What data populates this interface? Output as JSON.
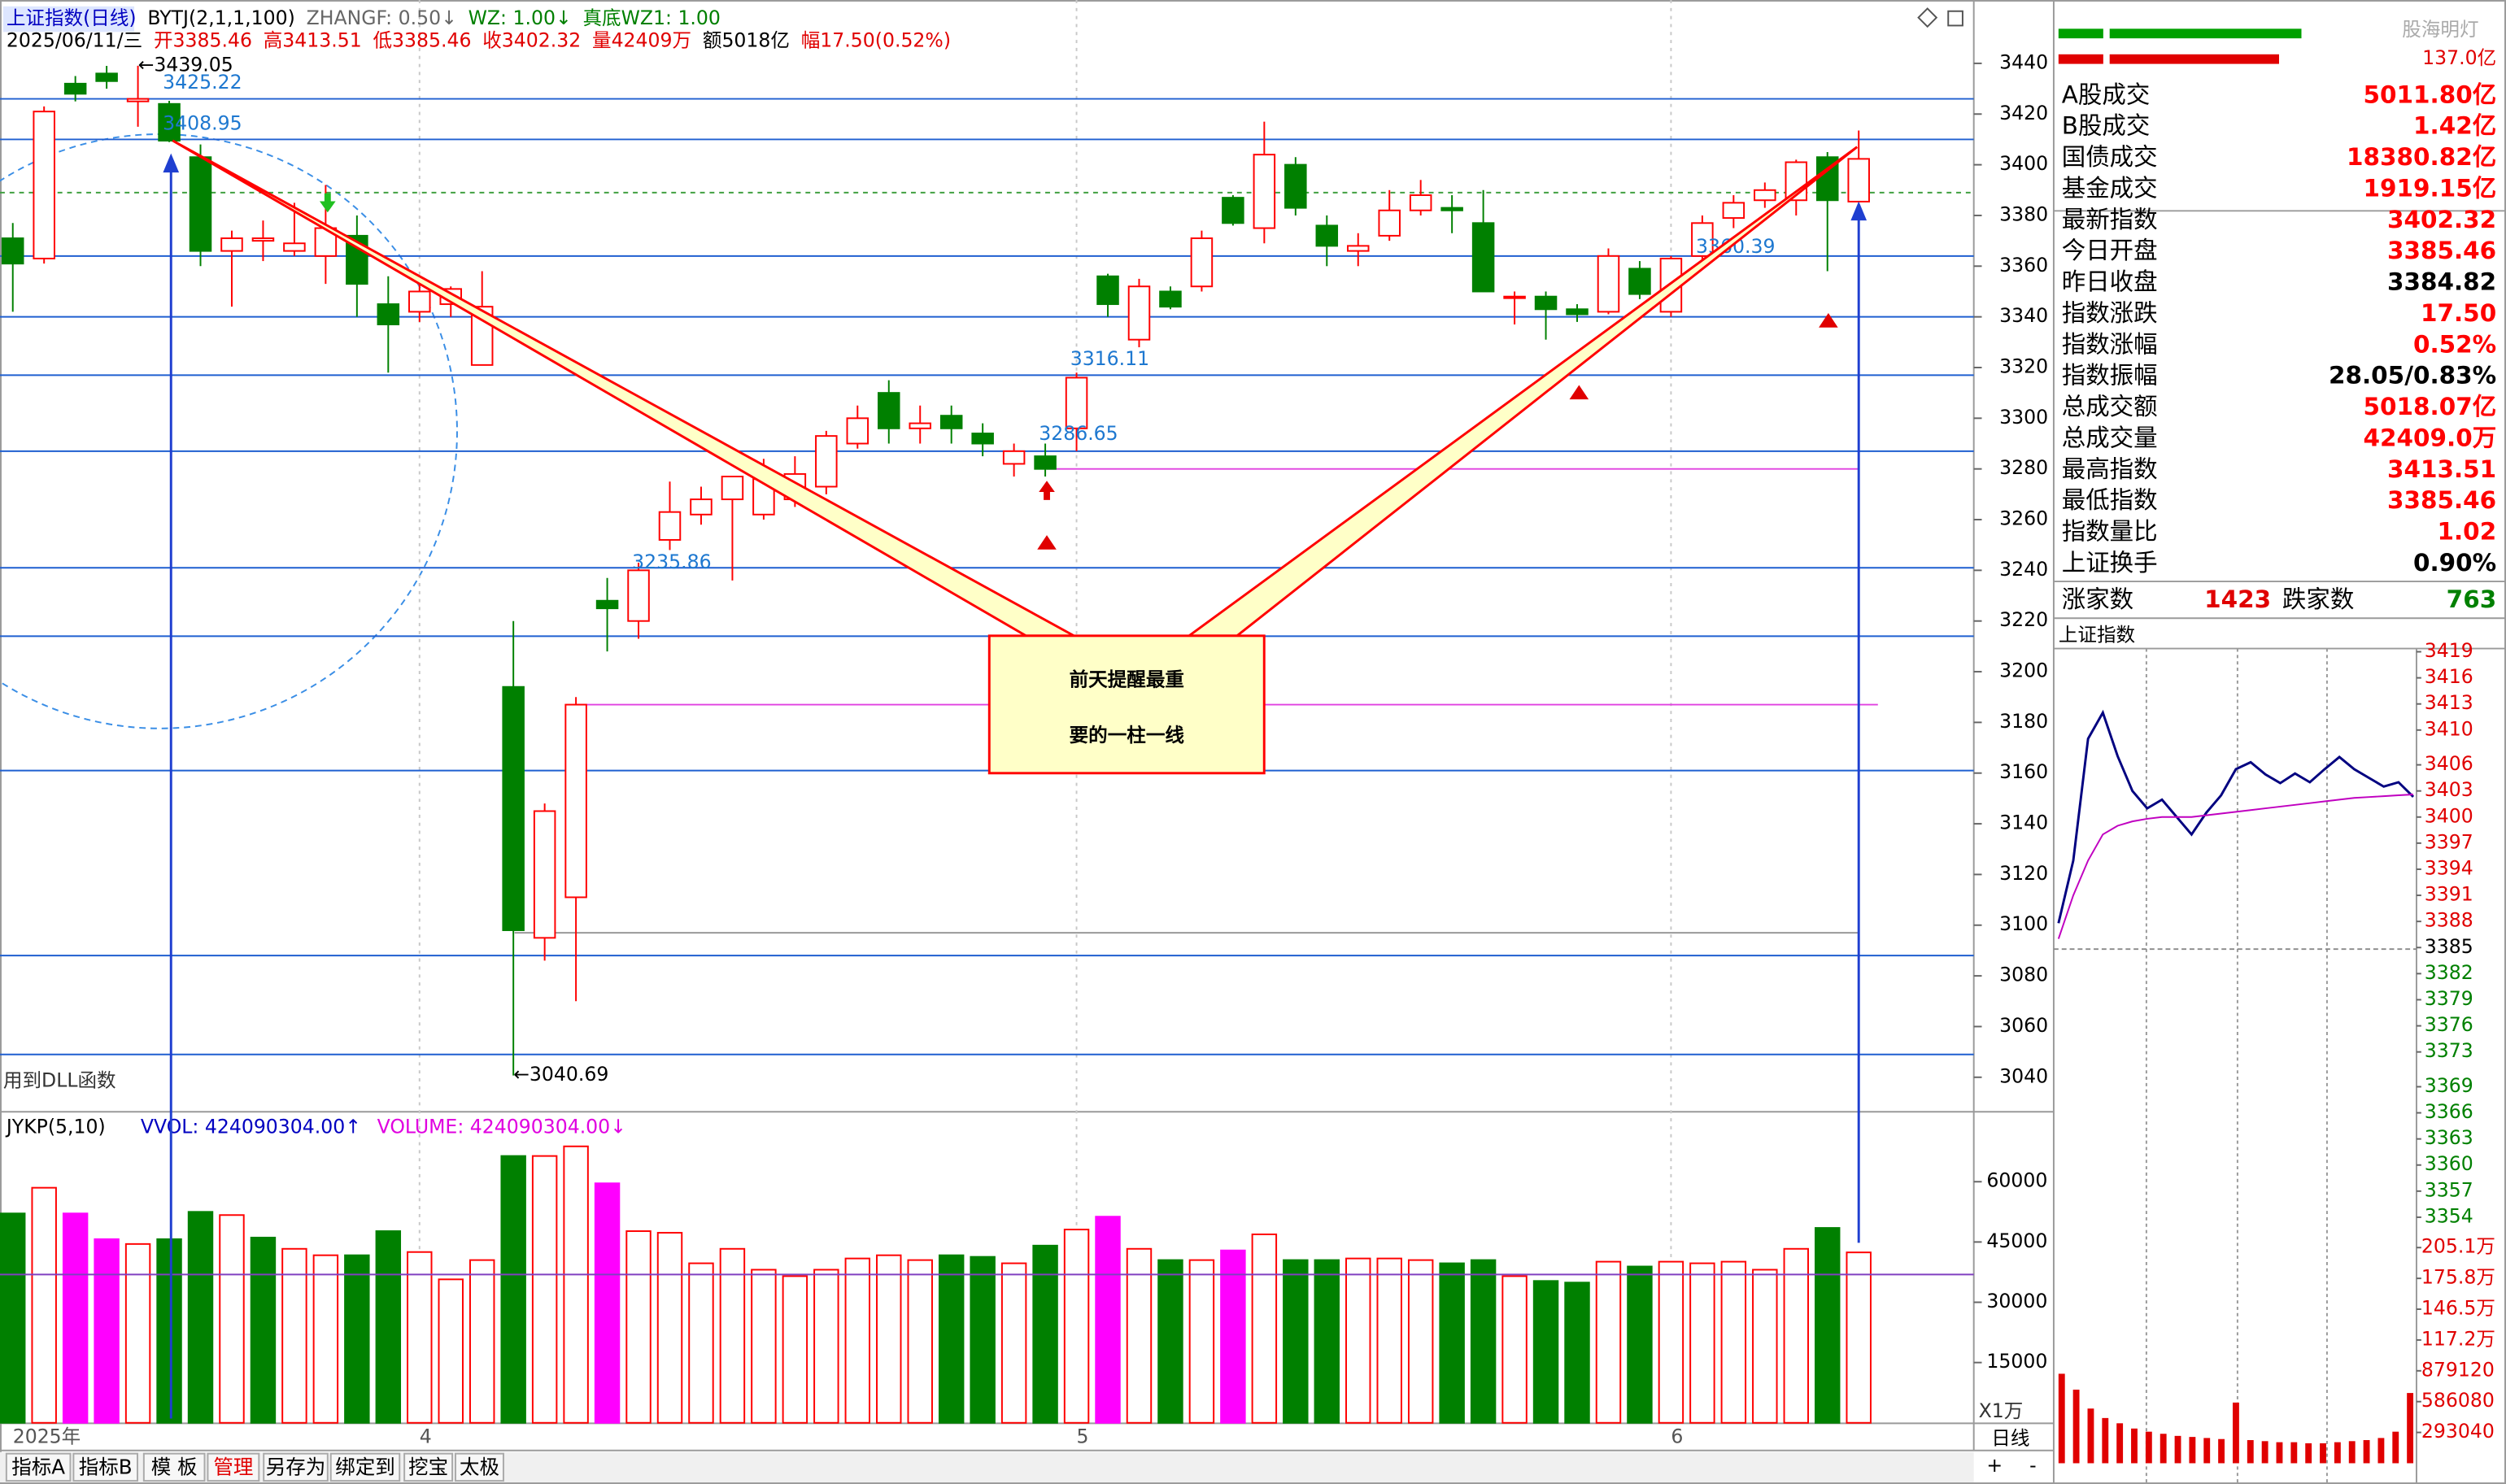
{
  "header": {
    "title": "上证指数(日线)",
    "indicator": "BYTJ(2,1,1,100)",
    "params": [
      "ZHANGF: 0.50↓",
      "WZ: 1.00↓",
      "真底WZ1: 1.00"
    ],
    "quote": [
      "2025/06/11/三",
      "开3385.46",
      "高3413.51",
      "低3385.46",
      "收3402.32",
      "量42409万",
      "额5018亿",
      "幅17.50(0.52%)"
    ]
  },
  "note": "用到DLL函数",
  "callout": [
    "前天提醒最重",
    "要的一柱一线"
  ],
  "chart_data": [
    {
      "type": "candlestick",
      "title": "上证指数(日线)",
      "categories": [
        "2025年",
        null,
        null,
        null,
        null,
        null,
        null,
        null,
        null,
        null,
        null,
        null,
        null,
        "4",
        null,
        null,
        null,
        null,
        null,
        null,
        null,
        null,
        null,
        null,
        null,
        null,
        null,
        null,
        null,
        null,
        null,
        null,
        null,
        null,
        "5",
        null,
        null,
        null,
        null,
        null,
        null,
        null,
        null,
        null,
        null,
        null,
        null,
        null,
        null,
        null,
        null,
        null,
        null,
        "6",
        null,
        null,
        null,
        null,
        null,
        null
      ],
      "open": [
        3371,
        3363,
        3432,
        3436,
        3425,
        3424,
        3403,
        3366,
        3370,
        3366,
        3364,
        3372,
        3345,
        3342,
        3345,
        3321,
        3194,
        3095,
        3111,
        3228,
        3220,
        3252,
        3262,
        3268,
        3262,
        3268,
        3273,
        3290,
        3310,
        3296,
        3301,
        3294,
        3282,
        3285,
        3296,
        3356,
        3331,
        3350,
        3352,
        3387,
        3375,
        3400,
        3376,
        3366,
        3372,
        3382,
        3383,
        3377,
        3348,
        3348,
        3343,
        3342,
        3359,
        3342,
        3364,
        3379,
        3386,
        3386,
        3403,
        3385.46
      ],
      "high": [
        3377,
        3423,
        3435,
        3439,
        3439.05,
        3425.22,
        3408,
        3374,
        3378,
        3385,
        3392,
        3380,
        3356,
        3356,
        3352,
        3358,
        3220,
        3148,
        3190,
        3237,
        3243,
        3275,
        3273,
        3277,
        3284,
        3285,
        3295,
        3305,
        3315,
        3305,
        3305,
        3298,
        3290,
        3290,
        3318,
        3357,
        3355,
        3352,
        3374,
        3388,
        3417,
        3403,
        3380,
        3373,
        3390,
        3394,
        3388,
        3390,
        3350,
        3350,
        3345,
        3367,
        3362,
        3364,
        3380,
        3388,
        3393,
        3402,
        3405,
        3413.51
      ],
      "low": [
        3342,
        3361,
        3425,
        3430,
        3415,
        3408.95,
        3360,
        3344,
        3362,
        3364,
        3353,
        3340,
        3318,
        3338,
        3340,
        3321,
        3040.69,
        3086,
        3070,
        3208,
        3213,
        3248,
        3258,
        3236,
        3260,
        3265,
        3270,
        3288,
        3290,
        3290,
        3290,
        3285,
        3277,
        3277,
        3287,
        3340,
        3328,
        3343,
        3350,
        3376,
        3369,
        3380,
        3360,
        3360,
        3370,
        3380,
        3373,
        3350,
        3337,
        3331,
        3338,
        3341,
        3347,
        3340,
        3360,
        3375,
        3383,
        3380,
        3358,
        3385.46
      ],
      "close": [
        3361,
        3421,
        3428,
        3433,
        3426,
        3409.5,
        3366,
        3371,
        3371,
        3369,
        3375,
        3353,
        3337,
        3350,
        3351,
        3344,
        3098,
        3145,
        3187,
        3225,
        3240,
        3263,
        3268,
        3277,
        3276,
        3278,
        3293,
        3300,
        3296,
        3298,
        3296,
        3290,
        3287,
        3280,
        3316,
        3345,
        3352,
        3344,
        3371,
        3377,
        3404,
        3383,
        3368,
        3368,
        3382,
        3388,
        3382,
        3350,
        3348,
        3343,
        3341,
        3364,
        3349,
        3363,
        3377,
        3385,
        3390,
        3401,
        3386,
        3402.32
      ],
      "up_color": "#ff0000",
      "down_color": "#008000",
      "ylim": [
        3027,
        3465
      ],
      "yticks": [
        3440,
        3420,
        3400,
        3380,
        3360,
        3340,
        3320,
        3300,
        3280,
        3260,
        3240,
        3220,
        3200,
        3180,
        3160,
        3140,
        3120,
        3100,
        3080,
        3060,
        3040
      ],
      "hlines": [
        3426,
        3410,
        3364,
        3340,
        3317,
        3287,
        3241,
        3214,
        3161,
        3088,
        3049
      ],
      "hline_color": "#1f5fd0",
      "magenta_lines": [
        3280,
        3187
      ],
      "gray_line": 3097,
      "dashed_level": 3389,
      "annotations": [
        {
          "label": "←3439.05",
          "value": 3439.05,
          "index": 4
        },
        {
          "label": "3425.22",
          "value": 3425.22,
          "index": 5
        },
        {
          "label": "3408.95",
          "value": 3408.95,
          "index": 5
        },
        {
          "label": "3235.86",
          "value": 3235.86,
          "index": 20
        },
        {
          "label": "3286.65",
          "value": 3286.65,
          "index": 33
        },
        {
          "label": "3316.11",
          "value": 3316.11,
          "index": 34
        },
        {
          "label": "3360.39",
          "value": 3360.39,
          "index": 54
        },
        {
          "label": "←3040.69",
          "value": 3040.69,
          "index": 16
        }
      ]
    },
    {
      "type": "bar",
      "title": "JYKP(5,10)",
      "legend": [
        "VVOL: 424090304.00↑",
        "VOLUME: 424090304.00↓"
      ],
      "unit": "X1万",
      "values": [
        52100,
        58500,
        52100,
        45700,
        44500,
        45700,
        52500,
        51700,
        46100,
        43300,
        41700,
        41700,
        47700,
        42500,
        35700,
        40500,
        66400,
        66400,
        68800,
        59600,
        47700,
        47300,
        39700,
        43300,
        38100,
        36500,
        38100,
        40900,
        41700,
        40500,
        41700,
        41300,
        39700,
        44100,
        48100,
        51300,
        43300,
        40500,
        40500,
        42900,
        46900,
        40500,
        40500,
        40900,
        40900,
        40500,
        39700,
        40500,
        36500,
        35300,
        34900,
        40100,
        38900,
        40100,
        39700,
        40100,
        38100,
        43300,
        48500,
        42409
      ],
      "colors": [
        "#008000",
        "#ff0000",
        "#ff00ff",
        "#ff00ff",
        "#ff0000",
        "#008000",
        "#008000",
        "#ff0000",
        "#008000",
        "#ff0000",
        "#ff0000",
        "#008000",
        "#008000",
        "#ff0000",
        "#ff0000",
        "#ff0000",
        "#008000",
        "#ff0000",
        "#ff0000",
        "#ff00ff",
        "#ff0000",
        "#ff0000",
        "#ff0000",
        "#ff0000",
        "#ff0000",
        "#ff0000",
        "#ff0000",
        "#ff0000",
        "#ff0000",
        "#ff0000",
        "#008000",
        "#008000",
        "#ff0000",
        "#008000",
        "#ff0000",
        "#ff00ff",
        "#ff0000",
        "#008000",
        "#ff0000",
        "#ff00ff",
        "#ff0000",
        "#008000",
        "#008000",
        "#ff0000",
        "#ff0000",
        "#ff0000",
        "#008000",
        "#008000",
        "#ff0000",
        "#008000",
        "#008000",
        "#ff0000",
        "#008000",
        "#ff0000",
        "#ff0000",
        "#ff0000",
        "#ff0000",
        "#ff0000",
        "#008000",
        "#ff0000"
      ],
      "reference_level": 36900,
      "ylim": [
        0,
        77000
      ],
      "yticks": [
        60000,
        45000,
        30000,
        15000
      ]
    },
    {
      "type": "line",
      "title": "上证指数",
      "base": 3384.82,
      "series": [
        {
          "color": "#000080",
          "values": [
            3387.8,
            3395,
            3409,
            3412,
            3407,
            3403,
            3401,
            3402,
            3400,
            3398,
            3400.5,
            3402.5,
            3405.5,
            3406.3,
            3404.9,
            3403.9,
            3405,
            3404,
            3405.5,
            3406.9,
            3405.5,
            3404.5,
            3403.5,
            3404,
            3402.32
          ]
        },
        {
          "color": "#c000c0",
          "values": [
            3386,
            3391,
            3395,
            3398,
            3399,
            3399.5,
            3399.8,
            3400,
            3400,
            3400,
            3400.2,
            3400.4,
            3400.6,
            3400.8,
            3401,
            3401.2,
            3401.4,
            3401.6,
            3401.8,
            3402,
            3402.2,
            3402.3,
            3402.4,
            3402.5,
            3402.6
          ]
        }
      ],
      "ylim": [
        3354,
        3419
      ],
      "yticks": [
        3419,
        3416,
        3413,
        3410,
        3406,
        3403,
        3400,
        3397,
        3394,
        3391,
        3388,
        3385,
        3382,
        3379,
        3376,
        3373,
        3369,
        3366,
        3363,
        3360,
        3357,
        3354
      ]
    },
    {
      "type": "bar",
      "color": "#e00000",
      "values": [
        851000,
        700000,
        520000,
        430000,
        380000,
        330000,
        300000,
        280000,
        260000,
        250000,
        240000,
        230000,
        577000,
        220000,
        210000,
        200000,
        200000,
        190000,
        190000,
        200000,
        210000,
        220000,
        240000,
        300000,
        668000
      ],
      "ylim": [
        0,
        2051000
      ],
      "yticks": [
        {
          "value": 2051000,
          "label": "205.1万"
        },
        {
          "value": 1758000,
          "label": "175.8万"
        },
        {
          "value": 1465000,
          "label": "146.5万"
        },
        {
          "value": 1172000,
          "label": "117.2万"
        },
        879120,
        586080,
        293040
      ]
    }
  ],
  "quote_panel": {
    "watermark": "股海明灯",
    "amount": "137.0亿",
    "rows": [
      {
        "label": "A股成交",
        "value": "5011.80亿",
        "color": "#ff0000"
      },
      {
        "label": "B股成交",
        "value": "1.42亿",
        "color": "#ff0000"
      },
      {
        "label": "国债成交",
        "value": "18380.82亿",
        "color": "#ff0000"
      },
      {
        "label": "基金成交",
        "value": "1919.15亿",
        "color": "#ff0000"
      },
      {
        "label": "最新指数",
        "value": "3402.32",
        "color": "#ff0000"
      },
      {
        "label": "今日开盘",
        "value": "3385.46",
        "color": "#ff0000"
      },
      {
        "label": "昨日收盘",
        "value": "3384.82",
        "color": "#000000"
      },
      {
        "label": "指数涨跌",
        "value": "17.50",
        "color": "#ff0000"
      },
      {
        "label": "指数涨幅",
        "value": "0.52%",
        "color": "#ff0000"
      },
      {
        "label": "指数振幅",
        "value": "28.05/0.83%",
        "color": "#000000"
      },
      {
        "label": "总成交额",
        "value": "5018.07亿",
        "color": "#ff0000"
      },
      {
        "label": "总成交量",
        "value": "42409.0万",
        "color": "#ff0000"
      },
      {
        "label": "最高指数",
        "value": "3413.51",
        "color": "#ff0000"
      },
      {
        "label": "最低指数",
        "value": "3385.46",
        "color": "#ff0000"
      },
      {
        "label": "指数量比",
        "value": "1.02",
        "color": "#ff0000"
      },
      {
        "label": "上证换手",
        "value": "0.90%",
        "color": "#000000"
      }
    ],
    "breadth": {
      "up_label": "涨家数",
      "up": "1423",
      "down_label": "跌家数",
      "down": "763"
    }
  },
  "toolbar": {
    "tabs": [
      "指标A",
      "指标B",
      "模 板",
      "管理",
      "另存为",
      "绑定到",
      "挖宝",
      "太极"
    ],
    "period": "日线",
    "plus": "+",
    "minus": "-"
  }
}
